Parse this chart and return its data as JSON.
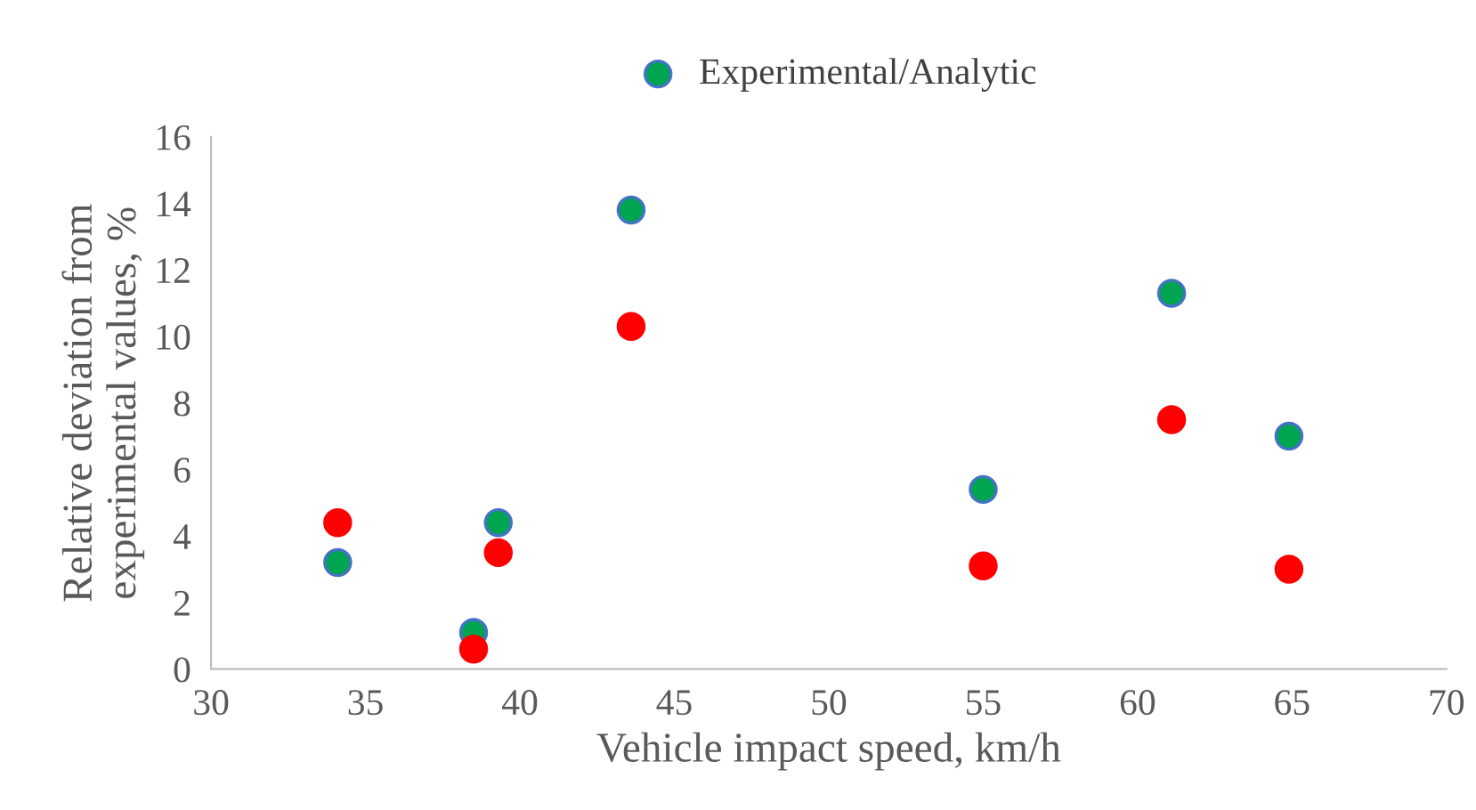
{
  "chart_data": {
    "type": "scatter",
    "xlabel": "Vehicle impact speed, km/h",
    "ylabel": "Relative deviation from\nexperimental values, %",
    "x": [
      34.1,
      38.5,
      39.3,
      43.6,
      55.0,
      61.1,
      64.9
    ],
    "series": [
      {
        "name": "Experimental/Analytic",
        "color": "#00a550",
        "values": [
          3.2,
          1.1,
          4.4,
          13.8,
          5.4,
          11.3,
          7.0
        ]
      },
      {
        "color": "#ff0000",
        "values": [
          4.4,
          0.6,
          3.5,
          10.3,
          3.1,
          7.5,
          3.0
        ]
      }
    ],
    "xlim": [
      30,
      70
    ],
    "xticks": [
      30,
      35,
      40,
      45,
      50,
      55,
      60,
      65,
      70
    ],
    "ylim": [
      0,
      16
    ],
    "yticks": [
      0,
      2,
      4,
      6,
      8,
      10,
      12,
      14,
      16
    ],
    "marker": "circle",
    "grid": false,
    "legend": "top"
  }
}
